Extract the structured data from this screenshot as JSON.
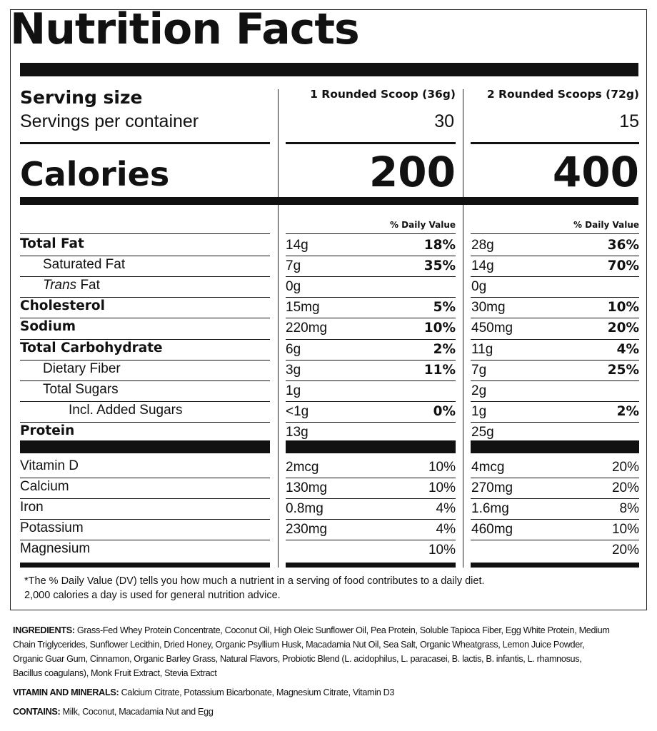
{
  "title": "Nutrition Facts",
  "serving_size_label": "Serving size",
  "servings_per_container_label": "Servings per container",
  "calories_label": "Calories",
  "dv_header": "% Daily Value",
  "columns": [
    {
      "serving": "1 Rounded Scoop (36g)",
      "servings": "30",
      "calories": "200"
    },
    {
      "serving": "2 Rounded Scoops (72g)",
      "servings": "15",
      "calories": "400"
    }
  ],
  "nutrients": [
    {
      "name": "Total Fat",
      "bold": true,
      "indent": 0,
      "c1_amt": "14g",
      "c1_dv": "18%",
      "c2_amt": "28g",
      "c2_dv": "36%"
    },
    {
      "name": "Saturated Fat",
      "bold": false,
      "indent": 1,
      "c1_amt": "7g",
      "c1_dv": "35%",
      "c2_amt": "14g",
      "c2_dv": "70%"
    },
    {
      "name_italic": "Trans",
      "name": " Fat",
      "bold": false,
      "indent": 1,
      "c1_amt": "0g",
      "c1_dv": "",
      "c2_amt": "0g",
      "c2_dv": ""
    },
    {
      "name": "Cholesterol",
      "bold": true,
      "indent": 0,
      "c1_amt": "15mg",
      "c1_dv": "5%",
      "c2_amt": "30mg",
      "c2_dv": "10%"
    },
    {
      "name": "Sodium",
      "bold": true,
      "indent": 0,
      "c1_amt": "220mg",
      "c1_dv": "10%",
      "c2_amt": "450mg",
      "c2_dv": "20%"
    },
    {
      "name": "Total Carbohydrate",
      "bold": true,
      "indent": 0,
      "c1_amt": "6g",
      "c1_dv": "2%",
      "c2_amt": "11g",
      "c2_dv": "4%"
    },
    {
      "name": "Dietary Fiber",
      "bold": false,
      "indent": 1,
      "c1_amt": "3g",
      "c1_dv": "11%",
      "c2_amt": "7g",
      "c2_dv": "25%"
    },
    {
      "name": "Total Sugars",
      "bold": false,
      "indent": 1,
      "c1_amt": "1g",
      "c1_dv": "",
      "c2_amt": "2g",
      "c2_dv": ""
    },
    {
      "name": "Incl. Added Sugars",
      "bold": false,
      "indent": 2,
      "c1_amt": "<1g",
      "c1_dv": "0%",
      "c2_amt": "1g",
      "c2_dv": "2%"
    },
    {
      "name": "Protein",
      "bold": true,
      "indent": 0,
      "c1_amt": "13g",
      "c1_dv": "",
      "c2_amt": "25g",
      "c2_dv": ""
    }
  ],
  "vitamins": [
    {
      "name": "Vitamin D",
      "c1_amt": "2mcg",
      "c1_dv": "10%",
      "c2_amt": "4mcg",
      "c2_dv": "20%"
    },
    {
      "name": "Calcium",
      "c1_amt": "130mg",
      "c1_dv": "10%",
      "c2_amt": "270mg",
      "c2_dv": "20%"
    },
    {
      "name": "Iron",
      "c1_amt": "0.8mg",
      "c1_dv": "4%",
      "c2_amt": "1.6mg",
      "c2_dv": "8%"
    },
    {
      "name": "Potassium",
      "c1_amt": "230mg",
      "c1_dv": "4%",
      "c2_amt": "460mg",
      "c2_dv": "10%"
    },
    {
      "name": "Magnesium",
      "c1_amt": "",
      "c1_dv": "10%",
      "c2_amt": "",
      "c2_dv": "20%"
    }
  ],
  "footnote_line1": "*The % Daily Value (DV) tells you how much a nutrient in a serving of food contributes to a daily diet.",
  "footnote_line2": "2,000 calories a day is used for general nutrition advice.",
  "ingredients_label": "INGREDIENTS:",
  "ingredients_text": "Grass-Fed Whey Protein Concentrate, Coconut Oil, High Oleic Sunflower Oil, Pea Protein, Soluble Tapioca Fiber, Egg White Protein, Medium Chain Triglycerides, Sunflower Lecithin, Dried Honey, Organic Psyllium Husk, Macadamia Nut Oil, Sea Salt, Organic Wheatgrass, Lemon Juice Powder, Organic Guar Gum, Cinnamon, Organic Barley Grass, Natural Flavors, Probiotic Blend (L. acidophilus, L. paracasei, B. lactis, B. infantis, L. rhamnosus, Bacillus coagulans), Monk Fruit Extract, Stevia Extract",
  "vitamins_label": "VITAMIN AND MINERALS:",
  "vitamins_text": "Calcium Citrate, Potassium Bicarbonate, Magnesium Citrate, Vitamin D3",
  "contains_label": "CONTAINS:",
  "contains_text": "Milk, Coconut, Macadamia Nut and Egg"
}
